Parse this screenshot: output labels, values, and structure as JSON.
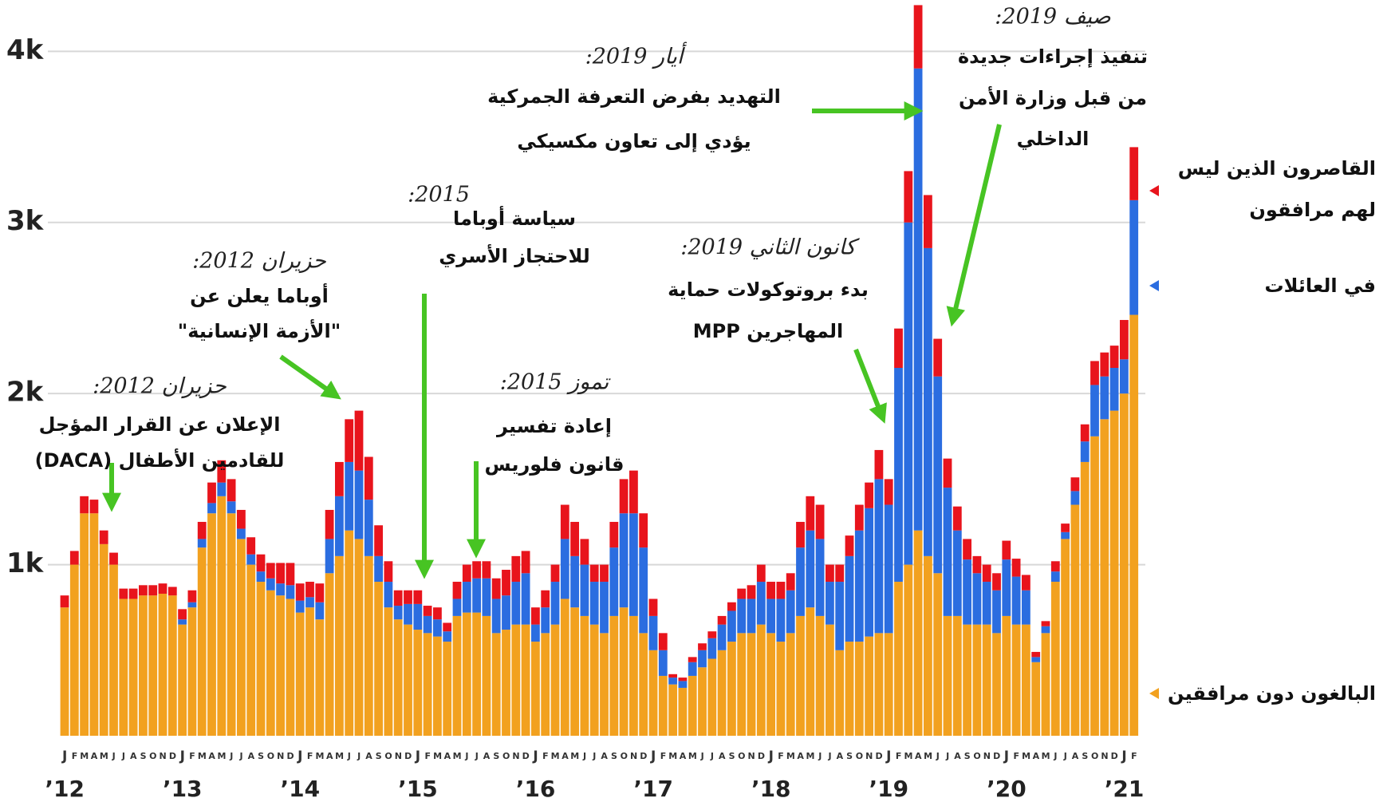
{
  "chart_data": {
    "type": "stacked_bar",
    "categories": [
      "J",
      "F",
      "M",
      "A",
      "M",
      "J",
      "J",
      "A",
      "S",
      "O",
      "N",
      "D",
      "J",
      "F",
      "M",
      "A",
      "M",
      "J",
      "J",
      "A",
      "S",
      "O",
      "N",
      "D",
      "J",
      "F",
      "M",
      "A",
      "M",
      "J",
      "J",
      "A",
      "S",
      "O",
      "N",
      "D",
      "J",
      "F",
      "M",
      "A",
      "M",
      "J",
      "J",
      "A",
      "S",
      "O",
      "N",
      "D",
      "J",
      "F",
      "M",
      "A",
      "M",
      "J",
      "J",
      "A",
      "S",
      "O",
      "N",
      "D",
      "J",
      "F",
      "M",
      "A",
      "M",
      "J",
      "J",
      "A",
      "S",
      "O",
      "N",
      "D",
      "J",
      "F",
      "M",
      "A",
      "M",
      "J",
      "J",
      "A",
      "S",
      "O",
      "N",
      "D",
      "J",
      "F",
      "M",
      "A",
      "M",
      "J",
      "J",
      "A",
      "S",
      "O",
      "N",
      "D",
      "J",
      "F",
      "M",
      "A",
      "M",
      "J",
      "J",
      "A",
      "S",
      "O",
      "N",
      "D",
      "J",
      "F"
    ],
    "year_labels": [
      "’12",
      "’13",
      "’14",
      "’15",
      "’16",
      "’17",
      "’18",
      "’19",
      "’20",
      "’21"
    ],
    "series": [
      {
        "name": "البالغون دون مرافقين",
        "color": "#f2a11f",
        "values": [
          750,
          1000,
          1300,
          1300,
          1120,
          1000,
          800,
          800,
          820,
          820,
          830,
          820,
          650,
          750,
          1100,
          1300,
          1400,
          1300,
          1150,
          1000,
          900,
          850,
          820,
          800,
          720,
          750,
          680,
          950,
          1050,
          1200,
          1150,
          1050,
          900,
          750,
          680,
          650,
          620,
          600,
          580,
          550,
          700,
          720,
          720,
          700,
          600,
          620,
          650,
          650,
          550,
          600,
          650,
          800,
          750,
          700,
          650,
          600,
          700,
          750,
          700,
          600,
          500,
          350,
          300,
          280,
          350,
          400,
          450,
          500,
          550,
          600,
          600,
          650,
          600,
          550,
          600,
          700,
          750,
          700,
          650,
          500,
          550,
          550,
          580,
          600,
          600,
          900,
          1000,
          1200,
          1050,
          950,
          700,
          700,
          650,
          650,
          650,
          600,
          700,
          650,
          650,
          430,
          600,
          900,
          1150,
          1350,
          1600,
          1750,
          1850,
          1900,
          2000,
          2460
        ]
      },
      {
        "name": "في العائلات",
        "color": "#2b6de0",
        "values": [
          0,
          0,
          0,
          0,
          0,
          0,
          0,
          0,
          0,
          0,
          0,
          0,
          30,
          30,
          50,
          60,
          80,
          70,
          60,
          60,
          60,
          70,
          70,
          80,
          70,
          60,
          100,
          200,
          350,
          400,
          400,
          330,
          150,
          150,
          80,
          120,
          150,
          100,
          100,
          60,
          100,
          180,
          200,
          220,
          200,
          200,
          250,
          300,
          100,
          150,
          250,
          350,
          300,
          300,
          250,
          300,
          400,
          550,
          600,
          500,
          200,
          150,
          40,
          40,
          80,
          100,
          120,
          150,
          180,
          200,
          200,
          250,
          200,
          250,
          250,
          400,
          450,
          450,
          250,
          400,
          500,
          650,
          750,
          900,
          750,
          1250,
          2000,
          2700,
          1800,
          1150,
          750,
          500,
          380,
          300,
          250,
          250,
          330,
          280,
          200,
          30,
          40,
          60,
          40,
          80,
          120,
          300,
          250,
          250,
          200,
          670
        ]
      },
      {
        "name": "القاصرون الذين ليس لهم مرافقون",
        "color": "#e8141c",
        "values": [
          70,
          80,
          100,
          80,
          80,
          70,
          60,
          60,
          60,
          60,
          60,
          50,
          60,
          70,
          100,
          120,
          130,
          130,
          110,
          100,
          100,
          90,
          120,
          130,
          100,
          90,
          110,
          170,
          200,
          250,
          350,
          250,
          180,
          120,
          90,
          80,
          80,
          60,
          70,
          50,
          100,
          100,
          100,
          100,
          120,
          150,
          150,
          130,
          100,
          100,
          100,
          200,
          200,
          150,
          100,
          100,
          150,
          200,
          250,
          200,
          100,
          100,
          20,
          20,
          30,
          40,
          40,
          50,
          50,
          60,
          80,
          100,
          100,
          100,
          100,
          150,
          200,
          200,
          100,
          100,
          120,
          150,
          150,
          170,
          150,
          230,
          300,
          370,
          310,
          220,
          170,
          140,
          120,
          100,
          100,
          100,
          110,
          105,
          90,
          30,
          30,
          60,
          50,
          80,
          100,
          140,
          140,
          130,
          230,
          310
        ]
      }
    ],
    "ylim": [
      0,
      4300
    ],
    "yticks": [
      {
        "value": 1000,
        "label": "1k"
      },
      {
        "value": 2000,
        "label": "2k"
      },
      {
        "value": 3000,
        "label": "3k"
      },
      {
        "value": 4000,
        "label": "4k"
      }
    ],
    "grid": true,
    "annotations": [
      {
        "date": "حزيران 2012:",
        "lines": [
          "الإعلان عن القرار المؤجل",
          "للقادمين الأطفال (DACA)"
        ]
      },
      {
        "date": "حزيران 2012:",
        "lines": [
          "أوباما يعلن عن",
          "\"الأزمة الإنسانية\""
        ]
      },
      {
        "date": "2015:",
        "lines": [
          "سياسة أوباما",
          "للاحتجاز الأسري"
        ]
      },
      {
        "date": "تموز 2015:",
        "lines": [
          "إعادة  تفسير",
          "قانون فلوريس"
        ]
      },
      {
        "date": "أيار 2019:",
        "lines": [
          "التهديد بفرض التعرفة الجمركية",
          "يؤدي إلى تعاون مكسيكي"
        ]
      },
      {
        "date": "كانون الثاني 2019:",
        "lines": [
          "بدء بروتوكولات حماية",
          "المهاجرين MPP"
        ]
      },
      {
        "date": "صيف 2019:",
        "lines": [
          "تنفيذ إجراءات جديدة",
          "من قبل وزارة الأمن",
          "الداخلي"
        ]
      }
    ]
  }
}
